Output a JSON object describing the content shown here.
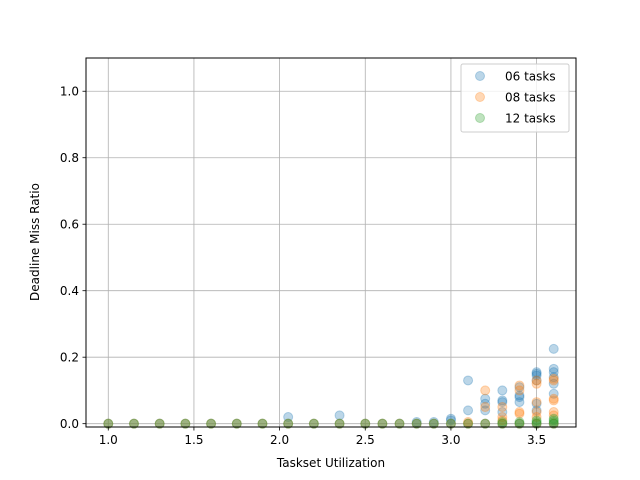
{
  "chart_data": {
    "type": "scatter",
    "title": "",
    "xlabel": "Taskset Utilization",
    "ylabel": "Deadline Miss Ratio",
    "xlim": [
      0.87,
      3.73
    ],
    "ylim": [
      -0.01,
      1.1
    ],
    "xticks": [
      1.0,
      1.5,
      2.0,
      2.5,
      3.0,
      3.5
    ],
    "xtick_labels": [
      "1.0",
      "1.5",
      "2.0",
      "2.5",
      "3.0",
      "3.5"
    ],
    "yticks": [
      0.0,
      0.2,
      0.4,
      0.6,
      0.8,
      1.0
    ],
    "ytick_labels": [
      "0.0",
      "0.2",
      "0.4",
      "0.6",
      "0.8",
      "1.0"
    ],
    "grid": true,
    "legend_position": "top-right",
    "series": [
      {
        "name": "06 tasks",
        "color": "#1f77b4",
        "alpha": 0.3,
        "points": [
          [
            1.0,
            0
          ],
          [
            1.15,
            0
          ],
          [
            1.3,
            0
          ],
          [
            1.45,
            0
          ],
          [
            1.6,
            0
          ],
          [
            1.75,
            0
          ],
          [
            1.9,
            0
          ],
          [
            2.05,
            0
          ],
          [
            2.05,
            0.02
          ],
          [
            2.2,
            0
          ],
          [
            2.35,
            0
          ],
          [
            2.35,
            0.025
          ],
          [
            2.5,
            0
          ],
          [
            2.6,
            0
          ],
          [
            2.7,
            0
          ],
          [
            2.8,
            0
          ],
          [
            2.8,
            0.005
          ],
          [
            2.9,
            0
          ],
          [
            2.9,
            0.005
          ],
          [
            3.0,
            0
          ],
          [
            3.0,
            0.01
          ],
          [
            3.0,
            0.015
          ],
          [
            3.1,
            0
          ],
          [
            3.1,
            0.04
          ],
          [
            3.1,
            0.13
          ],
          [
            3.2,
            0
          ],
          [
            3.2,
            0.04
          ],
          [
            3.2,
            0.06
          ],
          [
            3.2,
            0.075
          ],
          [
            3.3,
            0
          ],
          [
            3.3,
            0.035
          ],
          [
            3.3,
            0.065
          ],
          [
            3.3,
            0.07
          ],
          [
            3.3,
            0.1
          ],
          [
            3.4,
            0
          ],
          [
            3.4,
            0.065
          ],
          [
            3.4,
            0.08
          ],
          [
            3.4,
            0.085
          ],
          [
            3.4,
            0.11
          ],
          [
            3.5,
            0
          ],
          [
            3.5,
            0.04
          ],
          [
            3.5,
            0.06
          ],
          [
            3.5,
            0.13
          ],
          [
            3.5,
            0.145
          ],
          [
            3.5,
            0.15
          ],
          [
            3.5,
            0.155
          ],
          [
            3.6,
            0
          ],
          [
            3.6,
            0.09
          ],
          [
            3.6,
            0.12
          ],
          [
            3.6,
            0.14
          ],
          [
            3.6,
            0.155
          ],
          [
            3.6,
            0.165
          ],
          [
            3.6,
            0.225
          ]
        ]
      },
      {
        "name": "08 tasks",
        "color": "#ff7f0e",
        "alpha": 0.3,
        "points": [
          [
            1.0,
            0
          ],
          [
            1.15,
            0
          ],
          [
            1.3,
            0
          ],
          [
            1.45,
            0
          ],
          [
            1.6,
            0
          ],
          [
            1.75,
            0
          ],
          [
            1.9,
            0
          ],
          [
            2.05,
            0
          ],
          [
            2.2,
            0
          ],
          [
            2.35,
            0
          ],
          [
            2.5,
            0
          ],
          [
            2.6,
            0
          ],
          [
            2.7,
            0
          ],
          [
            2.8,
            0
          ],
          [
            2.9,
            0
          ],
          [
            3.0,
            0
          ],
          [
            3.1,
            0
          ],
          [
            3.1,
            0.005
          ],
          [
            3.2,
            0
          ],
          [
            3.2,
            0.05
          ],
          [
            3.2,
            0.1
          ],
          [
            3.3,
            0
          ],
          [
            3.3,
            0.01
          ],
          [
            3.3,
            0.02
          ],
          [
            3.3,
            0.05
          ],
          [
            3.4,
            0
          ],
          [
            3.4,
            0.03
          ],
          [
            3.4,
            0.035
          ],
          [
            3.4,
            0.1
          ],
          [
            3.4,
            0.115
          ],
          [
            3.5,
            0
          ],
          [
            3.5,
            0.02
          ],
          [
            3.5,
            0.035
          ],
          [
            3.5,
            0.065
          ],
          [
            3.5,
            0.12
          ],
          [
            3.5,
            0.13
          ],
          [
            3.6,
            0
          ],
          [
            3.6,
            0.025
          ],
          [
            3.6,
            0.035
          ],
          [
            3.6,
            0.07
          ],
          [
            3.6,
            0.075
          ],
          [
            3.6,
            0.13
          ],
          [
            3.6,
            0.135
          ]
        ]
      },
      {
        "name": "12 tasks",
        "color": "#2ca02c",
        "alpha": 0.3,
        "points": [
          [
            1.0,
            0
          ],
          [
            1.15,
            0
          ],
          [
            1.3,
            0
          ],
          [
            1.45,
            0
          ],
          [
            1.6,
            0
          ],
          [
            1.75,
            0
          ],
          [
            1.9,
            0
          ],
          [
            2.05,
            0
          ],
          [
            2.2,
            0
          ],
          [
            2.35,
            0
          ],
          [
            2.5,
            0
          ],
          [
            2.6,
            0
          ],
          [
            2.7,
            0
          ],
          [
            2.8,
            0
          ],
          [
            2.9,
            0
          ],
          [
            3.0,
            0
          ],
          [
            3.1,
            0
          ],
          [
            3.2,
            0
          ],
          [
            3.3,
            0
          ],
          [
            3.3,
            0.005
          ],
          [
            3.4,
            0
          ],
          [
            3.4,
            0.005
          ],
          [
            3.5,
            0
          ],
          [
            3.5,
            0.005
          ],
          [
            3.5,
            0.01
          ],
          [
            3.6,
            0
          ],
          [
            3.6,
            0.005
          ],
          [
            3.6,
            0.01
          ],
          [
            3.6,
            0.015
          ]
        ]
      }
    ]
  }
}
